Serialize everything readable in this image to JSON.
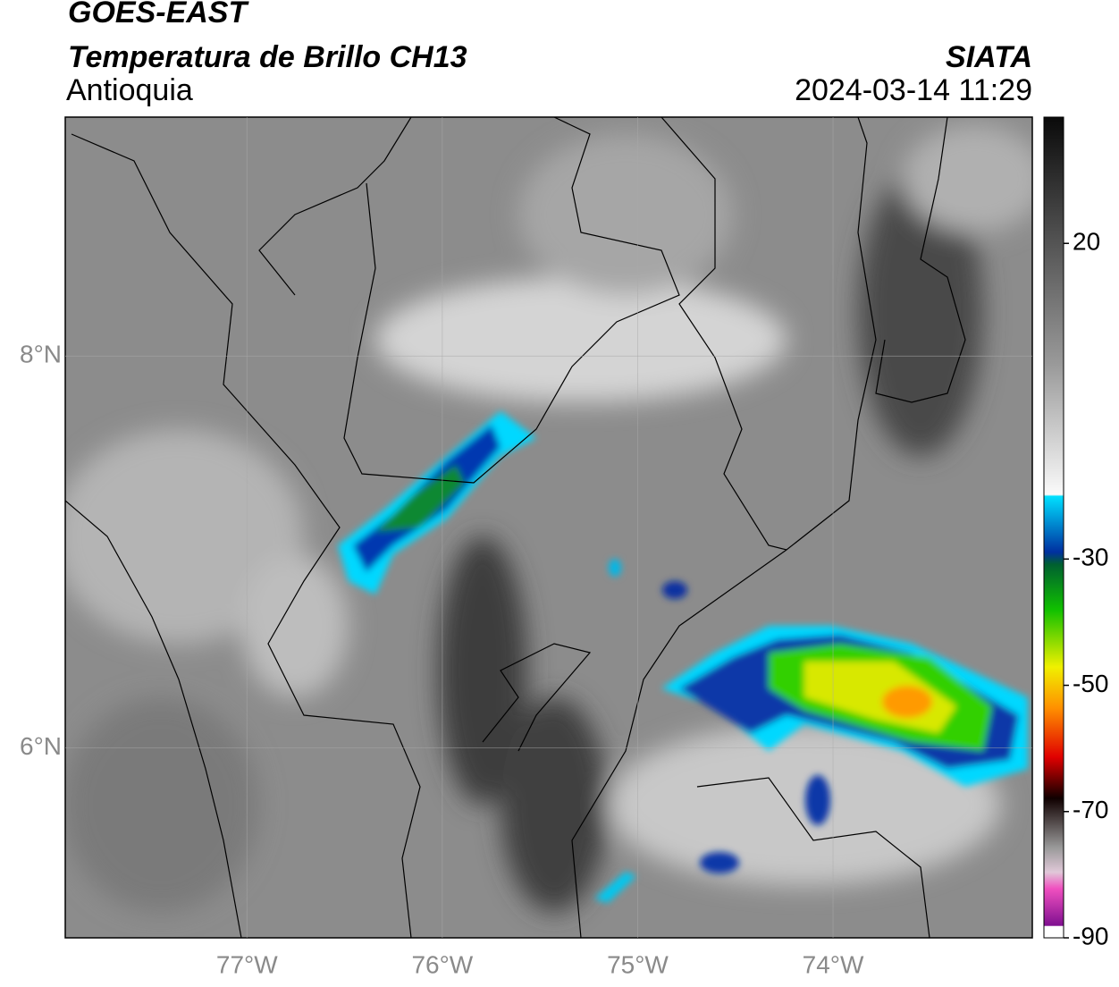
{
  "chart_data": {
    "type": "map",
    "title": "GOES-EAST",
    "subtitle": "Temperatura de Brillo CH13",
    "region": "Antioquia",
    "agency": "SIATA",
    "datetime": "2024-03-14 11:29",
    "xlim": [
      -77.93,
      -72.98
    ],
    "ylim": [
      5.03,
      9.22
    ],
    "xticks": [
      {
        "value": -77,
        "label": "77°W"
      },
      {
        "value": -76,
        "label": "76°W"
      },
      {
        "value": -75,
        "label": "75°W"
      },
      {
        "value": -74,
        "label": "74°W"
      }
    ],
    "yticks": [
      {
        "value": 6,
        "label": "6°N"
      },
      {
        "value": 8,
        "label": "8°N"
      }
    ],
    "grid": true,
    "colorbar": {
      "lim": [
        -90,
        40
      ],
      "ticks": [
        -90,
        -70,
        -50,
        -30,
        20
      ]
    }
  }
}
